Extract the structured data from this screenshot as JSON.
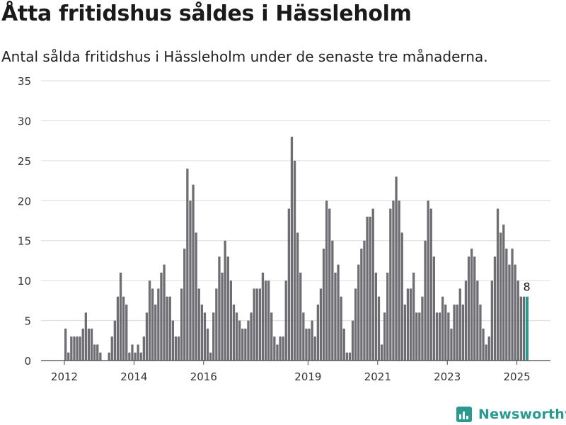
{
  "title": "Åtta fritidshus såldes i Hässleholm",
  "subtitle": "Antal sålda fritidshus i Hässleholm under de senaste tre månaderna.",
  "brand": {
    "name": "Newsworthy",
    "icon": "newsworthy-logo-icon",
    "color": "#2a9a91"
  },
  "chart_data": {
    "type": "bar",
    "title": "",
    "xlabel": "",
    "ylabel": "",
    "ylim": [
      0,
      35
    ],
    "yticks": [
      0,
      5,
      10,
      15,
      20,
      25,
      30,
      35
    ],
    "xticks": [
      "2012",
      "2014",
      "2016",
      "2019",
      "2021",
      "2023",
      "2025"
    ],
    "grid": true,
    "bar_color": "#6e6d72",
    "highlight_color": "#2a9a91",
    "highlight_label": "8",
    "series": [
      {
        "values": [
          4,
          1,
          3,
          3,
          3,
          3,
          4,
          6,
          4,
          4,
          2,
          2,
          1,
          0,
          0,
          1,
          3,
          5,
          8,
          11,
          8,
          7,
          1,
          2,
          1,
          2,
          1,
          3,
          6,
          10,
          9,
          7,
          9,
          11,
          12,
          8,
          8,
          5,
          3,
          3,
          9,
          14,
          24,
          20,
          22,
          16,
          9,
          7,
          6,
          4,
          1,
          6,
          9,
          13,
          11,
          15,
          13,
          10,
          7,
          6,
          5,
          4,
          4,
          5,
          6,
          9,
          9,
          9,
          11,
          10,
          10,
          6,
          3,
          2,
          3,
          3,
          10,
          19,
          28,
          25,
          16,
          11,
          6,
          4,
          4,
          5,
          3,
          7,
          9,
          14,
          20,
          19,
          15,
          11,
          12,
          8,
          4,
          1,
          1,
          5,
          9,
          12,
          14,
          15,
          18,
          18,
          19,
          11,
          8,
          2,
          6,
          11,
          19,
          20,
          23,
          20,
          16,
          7,
          9,
          9,
          11,
          6,
          6,
          8,
          15,
          20,
          19,
          13,
          6,
          6,
          8,
          7,
          6,
          4,
          7,
          7,
          9,
          7,
          10,
          13,
          14,
          13,
          10,
          7,
          4,
          2,
          3,
          10,
          13,
          19,
          16,
          17,
          14,
          12,
          14,
          12,
          10,
          8,
          8,
          8
        ]
      }
    ]
  }
}
